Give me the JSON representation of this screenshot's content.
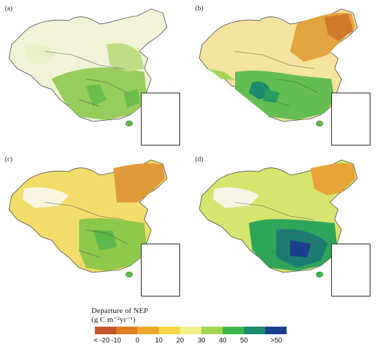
{
  "panels": [
    {
      "label": "(a)",
      "scheme": "a"
    },
    {
      "label": "(b)",
      "scheme": "b"
    },
    {
      "label": "(c)",
      "scheme": "c"
    },
    {
      "label": "(d)",
      "scheme": "d"
    }
  ],
  "legend": {
    "title_line1": "Departure of NEP",
    "title_line2": "(g C m⁻²yr⁻¹)",
    "ticks": [
      "< -20",
      "-10",
      "0",
      "10",
      "20",
      "30",
      "40",
      "50",
      ">50"
    ],
    "colors": [
      "#c8562a",
      "#e07b22",
      "#eda52a",
      "#f5d545",
      "#f2f08a",
      "#9ed650",
      "#3cb84a",
      "#1c8a6e",
      "#1a3f8c"
    ]
  }
}
